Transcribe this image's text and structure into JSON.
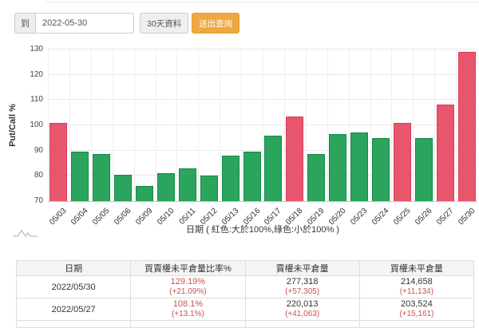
{
  "query_bar": {
    "to_label": "到",
    "date_value": "2022-05-30",
    "range_button_label": "30天資料",
    "submit_button_label": "送出查詢"
  },
  "chart_data": {
    "type": "bar",
    "y_axis_title": "Put/Call %",
    "caption": "日期 ( 紅色:大於100%,綠色:小於100% )",
    "ylim": [
      70,
      130
    ],
    "y_ticks": [
      70,
      80,
      90,
      100,
      110,
      120,
      130
    ],
    "grid": true,
    "categories": [
      "05/03",
      "05/04",
      "05/05",
      "05/06",
      "05/09",
      "05/10",
      "05/11",
      "05/12",
      "05/13",
      "05/16",
      "05/17",
      "05/18",
      "05/19",
      "05/20",
      "05/23",
      "05/24",
      "05/25",
      "05/26",
      "05/27",
      "05/30"
    ],
    "values": [
      101,
      89.5,
      88.5,
      80.5,
      76,
      81,
      83,
      80,
      88,
      89.5,
      96,
      103.5,
      88.5,
      96.5,
      97,
      95,
      101,
      95,
      108.1,
      129.19
    ],
    "color_rule": "red if value >= 100 else green",
    "red_threshold": 100,
    "colors": {
      "red": "#e8566e",
      "red_border": "#dd3a5b",
      "green": "#2ba45d",
      "green_border": "#138a45"
    }
  },
  "table": {
    "headers": [
      "日期",
      "買賣權未平倉量比率%",
      "賣權未平倉量",
      "買權未平倉量"
    ],
    "rows": [
      {
        "date": "2022/05/30",
        "ratio": "129.19%",
        "ratio_delta": "(+21.09%)",
        "put_oi": "277,318",
        "put_oi_delta": "(+57,305)",
        "call_oi": "214,658",
        "call_oi_delta": "(+11,134)"
      },
      {
        "date": "2022/05/27",
        "ratio": "108.1%",
        "ratio_delta": "(+13.1%)",
        "put_oi": "220,013",
        "put_oi_delta": "(+41,063)",
        "call_oi": "203,524",
        "call_oi_delta": "(+15,161)"
      }
    ],
    "accent_red": "#c9534f"
  }
}
